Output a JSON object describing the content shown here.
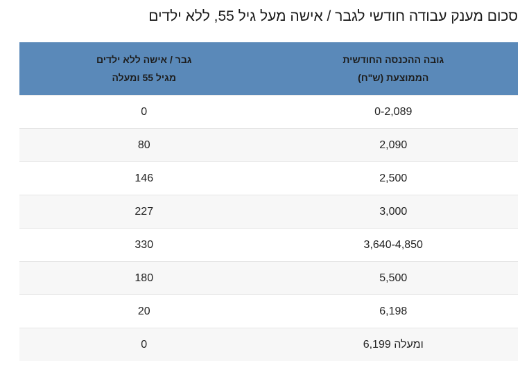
{
  "title": "סכום מענק עבודה חודשי לגבר / אישה מעל גיל 55, ללא ילדים",
  "table": {
    "headers": [
      {
        "line1": "גובה ההכנסה החודשית",
        "line2": "הממוצעת (ש\"ח)"
      },
      {
        "line1": "גבר / אישה ללא ילדים",
        "line2": "מגיל 55 ומעלה"
      }
    ],
    "rows": [
      {
        "income": "0-2,089",
        "grant": "0"
      },
      {
        "income": "2,090",
        "grant": "80"
      },
      {
        "income": "2,500",
        "grant": "146"
      },
      {
        "income": "3,000",
        "grant": "227"
      },
      {
        "income": "3,640-4,850",
        "grant": "330"
      },
      {
        "income": "5,500",
        "grant": "180"
      },
      {
        "income": "6,198",
        "grant": "20"
      },
      {
        "income": "6,199 ומעלה",
        "grant": "0"
      }
    ]
  },
  "colors": {
    "header_bg": "#5a89b9",
    "alt_row_bg": "#f7f7f7"
  }
}
